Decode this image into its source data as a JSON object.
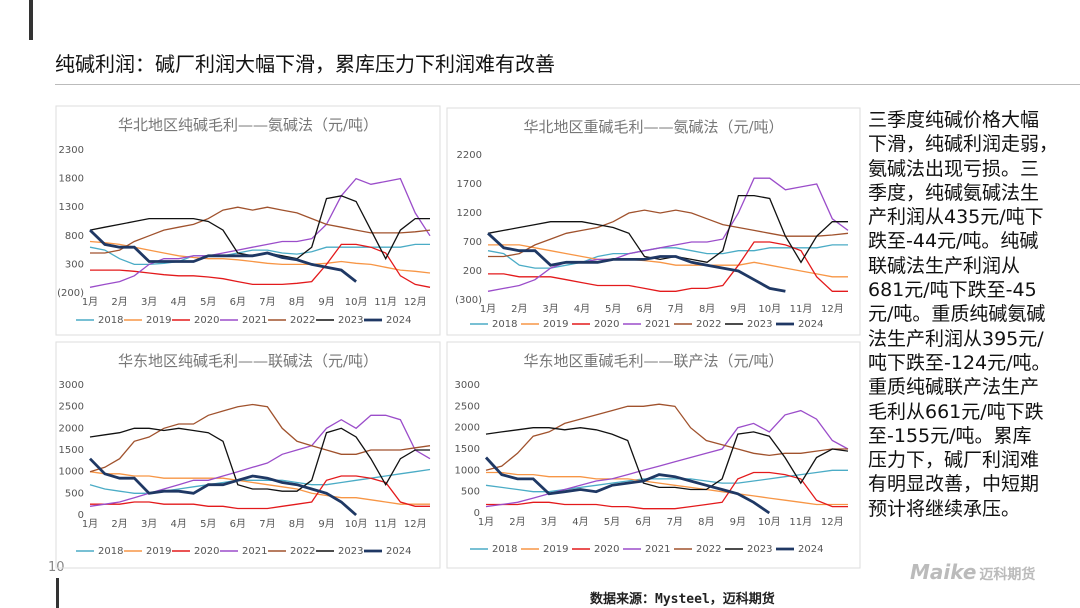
{
  "slide": {
    "title": "纯碱利润：碱厂利润大幅下滑，累库压力下利润难有改善",
    "page_number": "10",
    "source": "数据来源：Mysteel，迈科期货",
    "logo": "Maike",
    "logo_cn": "迈科期货",
    "side_text": [
      "三季度纯碱价格大幅",
      "下滑，纯碱利润走弱，",
      "氨碱法出现亏损。三",
      "季度，纯碱氨碱法生",
      "产利润从435元/吨下",
      "跌至-44元/吨。纯碱",
      "联碱法生产利润从",
      "681元/吨下跌至-45",
      "元/吨。重质纯碱氨碱",
      "法生产利润从395元/",
      "吨下跌至-124元/吨。",
      "重质纯碱联产法生产",
      "毛利从661元/吨下跌",
      "至-155元/吨。累库",
      "压力下，碱厂利润难",
      "有明显改善，中短期",
      "预计将继续承压。"
    ]
  },
  "chart_data": [
    {
      "type": "line",
      "title": "华北地区纯碱毛利——氨碱法（元/吨）",
      "grid": false,
      "categories": [
        "1月",
        null,
        "2月",
        null,
        "3月",
        null,
        "4月",
        null,
        "5月",
        null,
        "6月",
        null,
        "7月",
        null,
        "8月",
        null,
        "9月",
        null,
        "10月",
        null,
        "11月",
        null,
        "12月",
        null
      ],
      "ylim": [
        -200,
        2300
      ],
      "yticks": [
        {
          "value": -200,
          "label": "(200)"
        },
        300,
        800,
        1300,
        1800,
        2300
      ],
      "series": [
        {
          "name": "2018",
          "color": "#4bacc6",
          "values": [
            600,
            550,
            400,
            300,
            300,
            320,
            350,
            450,
            450,
            450,
            500,
            550,
            550,
            500,
            480,
            520,
            600,
            600,
            600,
            600,
            600,
            600,
            650,
            650
          ]
        },
        {
          "name": "2019",
          "color": "#f79646",
          "values": [
            700,
            680,
            650,
            600,
            550,
            500,
            450,
            420,
            400,
            400,
            380,
            350,
            320,
            300,
            300,
            300,
            320,
            350,
            320,
            300,
            250,
            200,
            180,
            150
          ]
        },
        {
          "name": "2020",
          "color": "#e31a1c",
          "values": [
            200,
            200,
            200,
            180,
            150,
            120,
            100,
            100,
            80,
            50,
            0,
            -50,
            -50,
            -50,
            -30,
            0,
            300,
            650,
            650,
            600,
            500,
            100,
            -50,
            -100
          ]
        },
        {
          "name": "2021",
          "color": "#9b4dca",
          "values": [
            -100,
            -50,
            0,
            100,
            300,
            400,
            400,
            450,
            450,
            500,
            550,
            600,
            650,
            700,
            700,
            750,
            1000,
            1500,
            1800,
            1700,
            1750,
            1800,
            1200,
            800
          ]
        },
        {
          "name": "2022",
          "color": "#a0522d",
          "values": [
            500,
            500,
            550,
            700,
            800,
            900,
            950,
            1000,
            1100,
            1250,
            1300,
            1250,
            1300,
            1250,
            1200,
            1100,
            1000,
            950,
            900,
            850,
            850,
            850,
            870,
            900
          ]
        },
        {
          "name": "2023",
          "color": "#111111",
          "values": [
            900,
            950,
            1000,
            1050,
            1100,
            1100,
            1100,
            1100,
            1050,
            900,
            500,
            450,
            500,
            450,
            400,
            600,
            1450,
            1500,
            1400,
            900,
            400,
            900,
            1100,
            1100
          ]
        },
        {
          "name": "2024",
          "color": "#1f3864",
          "values": [
            900,
            650,
            600,
            600,
            350,
            350,
            350,
            350,
            450,
            450,
            450,
            450,
            500,
            420,
            380,
            300,
            250,
            200,
            0,
            null,
            null,
            null,
            null,
            null
          ]
        }
      ]
    },
    {
      "type": "line",
      "title": "华北地区重碱毛利——氨碱法（元/吨）",
      "grid": false,
      "categories": [
        "1月",
        null,
        "2月",
        null,
        "3月",
        null,
        "4月",
        null,
        "5月",
        null,
        "6月",
        null,
        "7月",
        null,
        "8月",
        null,
        "9月",
        null,
        "10月",
        null,
        "11月",
        null,
        "12月",
        null
      ],
      "ylim": [
        -300,
        2200
      ],
      "yticks": [
        {
          "value": -300,
          "label": "(300)"
        },
        200,
        700,
        1200,
        1700,
        2200
      ],
      "series": [
        {
          "name": "2018",
          "color": "#4bacc6",
          "values": [
            550,
            500,
            300,
            250,
            250,
            300,
            350,
            450,
            500,
            500,
            550,
            600,
            600,
            550,
            500,
            500,
            550,
            550,
            600,
            600,
            600,
            600,
            650,
            650
          ]
        },
        {
          "name": "2019",
          "color": "#f79646",
          "values": [
            650,
            650,
            650,
            600,
            550,
            500,
            450,
            400,
            400,
            400,
            380,
            350,
            300,
            300,
            300,
            300,
            300,
            350,
            300,
            250,
            200,
            150,
            100,
            100
          ]
        },
        {
          "name": "2020",
          "color": "#e31a1c",
          "values": [
            150,
            150,
            100,
            100,
            100,
            50,
            0,
            -50,
            -50,
            -50,
            -100,
            -150,
            -150,
            -100,
            -100,
            -50,
            300,
            700,
            700,
            650,
            550,
            100,
            -150,
            -150
          ]
        },
        {
          "name": "2021",
          "color": "#9b4dca",
          "values": [
            -150,
            -100,
            -50,
            50,
            250,
            350,
            350,
            400,
            400,
            500,
            550,
            600,
            650,
            700,
            700,
            750,
            1200,
            1800,
            1800,
            1600,
            1650,
            1700,
            1100,
            900
          ]
        },
        {
          "name": "2022",
          "color": "#a0522d",
          "values": [
            450,
            450,
            500,
            650,
            750,
            850,
            900,
            950,
            1050,
            1200,
            1250,
            1200,
            1250,
            1200,
            1100,
            1000,
            950,
            900,
            850,
            800,
            800,
            800,
            820,
            850
          ]
        },
        {
          "name": "2023",
          "color": "#111111",
          "values": [
            850,
            900,
            950,
            1000,
            1050,
            1050,
            1050,
            1000,
            950,
            850,
            450,
            400,
            450,
            400,
            350,
            550,
            1500,
            1500,
            1450,
            800,
            350,
            800,
            1050,
            1050
          ]
        },
        {
          "name": "2024",
          "color": "#1f3864",
          "values": [
            850,
            600,
            550,
            550,
            300,
            350,
            350,
            350,
            400,
            400,
            400,
            450,
            450,
            350,
            300,
            250,
            200,
            50,
            -100,
            -150,
            null,
            null,
            null,
            null
          ]
        }
      ]
    },
    {
      "type": "line",
      "title": "华东地区纯碱毛利——联碱法（元/吨）",
      "grid": false,
      "categories": [
        "1月",
        null,
        "2月",
        null,
        "3月",
        null,
        "4月",
        null,
        "5月",
        null,
        "6月",
        null,
        "7月",
        null,
        "8月",
        null,
        "9月",
        null,
        "10月",
        null,
        "11月",
        null,
        "12月",
        null
      ],
      "ylim": [
        0,
        3000
      ],
      "yticks": [
        0,
        500,
        1000,
        1500,
        2000,
        2500,
        3000
      ],
      "series": [
        {
          "name": "2018",
          "color": "#4bacc6",
          "values": [
            700,
            600,
            550,
            500,
            500,
            550,
            600,
            650,
            700,
            750,
            800,
            800,
            800,
            800,
            750,
            700,
            700,
            750,
            800,
            850,
            900,
            950,
            1000,
            1050
          ]
        },
        {
          "name": "2019",
          "color": "#f79646",
          "values": [
            1000,
            950,
            950,
            900,
            900,
            850,
            850,
            850,
            850,
            850,
            800,
            750,
            700,
            650,
            600,
            500,
            450,
            400,
            400,
            350,
            300,
            250,
            250,
            250
          ]
        },
        {
          "name": "2020",
          "color": "#e31a1c",
          "values": [
            250,
            250,
            250,
            300,
            300,
            250,
            250,
            250,
            200,
            200,
            150,
            150,
            150,
            200,
            250,
            300,
            800,
            900,
            900,
            850,
            750,
            300,
            200,
            200
          ]
        },
        {
          "name": "2021",
          "color": "#9b4dca",
          "values": [
            200,
            250,
            300,
            400,
            500,
            600,
            700,
            800,
            800,
            900,
            1000,
            1100,
            1200,
            1400,
            1500,
            1600,
            2000,
            2200,
            2000,
            2300,
            2300,
            2200,
            1500,
            1300
          ]
        },
        {
          "name": "2022",
          "color": "#a0522d",
          "values": [
            1000,
            1100,
            1300,
            1700,
            1800,
            2000,
            2100,
            2100,
            2300,
            2400,
            2500,
            2550,
            2500,
            2000,
            1700,
            1600,
            1500,
            1400,
            1400,
            1500,
            1500,
            1500,
            1550,
            1600
          ]
        },
        {
          "name": "2023",
          "color": "#111111",
          "values": [
            1800,
            1850,
            1900,
            2000,
            2000,
            1950,
            2000,
            1950,
            1900,
            1700,
            700,
            600,
            600,
            550,
            550,
            800,
            1900,
            2000,
            1800,
            1300,
            700,
            1300,
            1500,
            1500
          ]
        },
        {
          "name": "2024",
          "color": "#1f3864",
          "values": [
            1300,
            950,
            850,
            850,
            500,
            550,
            550,
            500,
            700,
            700,
            800,
            900,
            850,
            750,
            700,
            600,
            500,
            300,
            0,
            null,
            null,
            null,
            null,
            null
          ]
        }
      ]
    },
    {
      "type": "line",
      "title": "华东地区重碱毛利——联产法（元/吨）",
      "grid": false,
      "categories": [
        "1月",
        null,
        "2月",
        null,
        "3月",
        null,
        "4月",
        null,
        "5月",
        null,
        "6月",
        null,
        "7月",
        null,
        "8月",
        null,
        "9月",
        null,
        "10月",
        null,
        "11月",
        null,
        "12月",
        null
      ],
      "ylim": [
        0,
        3000
      ],
      "yticks": [
        0,
        500,
        1000,
        1500,
        2000,
        2500,
        3000
      ],
      "series": [
        {
          "name": "2018",
          "color": "#4bacc6",
          "values": [
            650,
            600,
            550,
            500,
            500,
            550,
            600,
            650,
            700,
            750,
            800,
            800,
            800,
            800,
            750,
            700,
            700,
            750,
            800,
            850,
            900,
            950,
            1000,
            1000
          ]
        },
        {
          "name": "2019",
          "color": "#f79646",
          "values": [
            950,
            950,
            900,
            900,
            850,
            850,
            850,
            800,
            800,
            800,
            750,
            700,
            650,
            600,
            550,
            500,
            450,
            400,
            350,
            300,
            250,
            200,
            200,
            200
          ]
        },
        {
          "name": "2020",
          "color": "#e31a1c",
          "values": [
            200,
            200,
            200,
            250,
            250,
            200,
            200,
            200,
            150,
            150,
            100,
            100,
            100,
            150,
            200,
            250,
            800,
            950,
            950,
            900,
            800,
            300,
            150,
            150
          ]
        },
        {
          "name": "2021",
          "color": "#9b4dca",
          "values": [
            150,
            200,
            250,
            350,
            450,
            550,
            650,
            750,
            800,
            900,
            1000,
            1100,
            1200,
            1300,
            1400,
            1500,
            2000,
            2100,
            1900,
            2300,
            2400,
            2200,
            1700,
            1500
          ]
        },
        {
          "name": "2022",
          "color": "#a0522d",
          "values": [
            1000,
            1100,
            1400,
            1800,
            1900,
            2100,
            2200,
            2300,
            2400,
            2500,
            2500,
            2550,
            2500,
            2000,
            1700,
            1600,
            1500,
            1400,
            1350,
            1400,
            1400,
            1450,
            1500,
            1500
          ]
        },
        {
          "name": "2023",
          "color": "#111111",
          "values": [
            1850,
            1900,
            1950,
            2000,
            2000,
            1950,
            2000,
            1950,
            1850,
            1700,
            700,
            600,
            600,
            550,
            550,
            800,
            1850,
            1900,
            1800,
            1300,
            700,
            1300,
            1500,
            1450
          ]
        },
        {
          "name": "2024",
          "color": "#1f3864",
          "values": [
            1300,
            900,
            800,
            800,
            450,
            500,
            550,
            500,
            650,
            700,
            750,
            900,
            850,
            750,
            650,
            550,
            450,
            250,
            0,
            null,
            null,
            null,
            null,
            null
          ]
        }
      ]
    }
  ]
}
